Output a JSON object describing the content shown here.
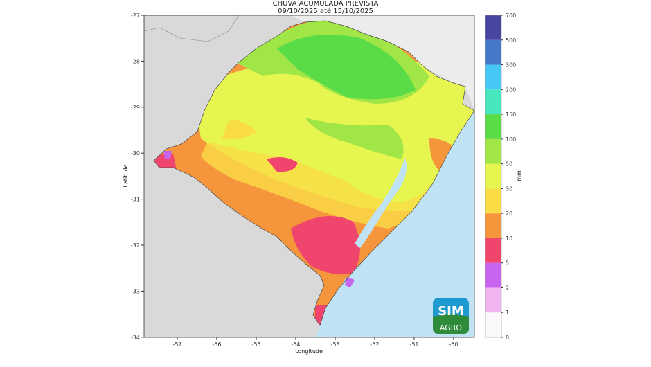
{
  "title": "CHUVA ACUMULADA PREVISTA",
  "subtitle": "09/10/2025 até 15/10/2025",
  "map": {
    "xlabel": "Longitude",
    "ylabel": "Latitude",
    "xticks": [
      "-57",
      "-56",
      "-55",
      "-54",
      "-53",
      "-52",
      "-51",
      "-50"
    ],
    "xtick_values": [
      -57,
      -56,
      -55,
      -54,
      -53,
      -52,
      -51,
      -50
    ],
    "yticks": [
      "-27",
      "-28",
      "-29",
      "-30",
      "-31",
      "-32",
      "-33",
      "-34"
    ],
    "ytick_values": [
      -27,
      -28,
      -29,
      -30,
      -31,
      -32,
      -33,
      -34
    ]
  },
  "colorbar": {
    "unit": "mm",
    "levels": [
      "0",
      "1",
      "2",
      "5",
      "10",
      "20",
      "30",
      "50",
      "100",
      "150",
      "200",
      "300",
      "500",
      "700"
    ],
    "colors": [
      "#fbf8fb",
      "#f0b4f0",
      "#c864f0",
      "#f0466e",
      "#f5963c",
      "#fadc46",
      "#e6f550",
      "#a0e646",
      "#5adc46",
      "#46e6be",
      "#46c8f5",
      "#4678c8",
      "#4646a0"
    ]
  },
  "logo": {
    "top": "SIM",
    "bottom": "AGRO"
  }
}
